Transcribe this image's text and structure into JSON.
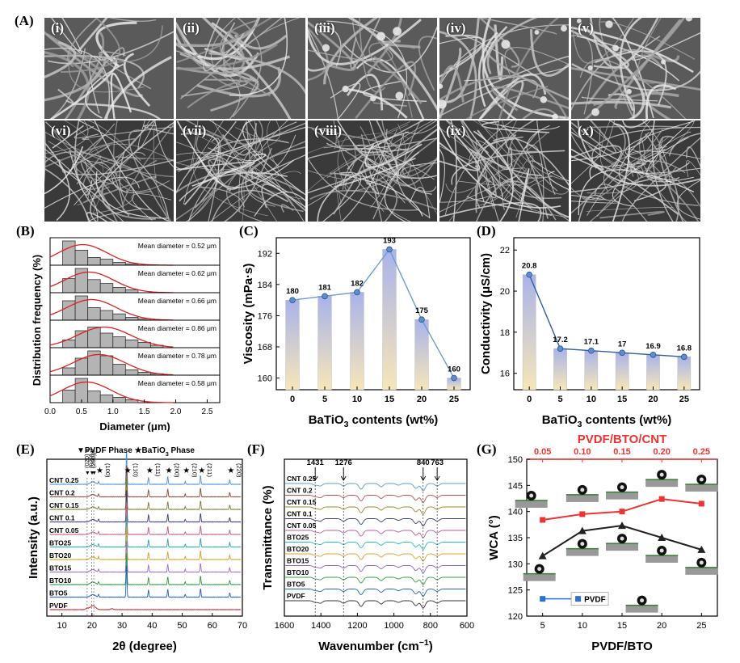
{
  "panel_labels": {
    "A": "(A)",
    "B": "(B)",
    "C": "(C)",
    "D": "(D)",
    "E": "(E)",
    "F": "(F)",
    "G": "(G)"
  },
  "sem_labels": [
    "(i)",
    "(ii)",
    "(iii)",
    "(iv)",
    "(v)",
    "(vi)",
    "(vii)",
    "(viii)",
    "(ix)",
    "(x)"
  ],
  "chart_data": [
    {
      "id": "B",
      "type": "histogram",
      "ylabel": "Distribution frequency (%)",
      "xlabel": "Diameter (μm)",
      "xlim": [
        0,
        2.7
      ],
      "xticks": [
        "0.0",
        "0.5",
        "1.0",
        "1.5",
        "2.0",
        "2.5"
      ],
      "bin_width": 0.2,
      "panels": [
        {
          "mean_label": "Mean diameter = 0.52 μm",
          "bins": [
            [
              0.2,
              1.0
            ],
            [
              0.4,
              0.62
            ],
            [
              0.6,
              0.32
            ],
            [
              0.8,
              0.25
            ],
            [
              1.0,
              0.12
            ],
            [
              1.2,
              0.05
            ]
          ],
          "mean": 0.52
        },
        {
          "mean_label": "Mean diameter = 0.62 μm",
          "bins": [
            [
              0.2,
              0.58
            ],
            [
              0.4,
              1.0
            ],
            [
              0.6,
              0.54
            ],
            [
              0.8,
              0.38
            ],
            [
              1.0,
              0.22
            ],
            [
              1.2,
              0.12
            ]
          ],
          "mean": 0.62
        },
        {
          "mean_label": "Mean diameter = 0.66 μm",
          "bins": [
            [
              0.2,
              0.8
            ],
            [
              0.4,
              1.0
            ],
            [
              0.6,
              0.52
            ],
            [
              0.8,
              0.4
            ],
            [
              1.0,
              0.26
            ],
            [
              1.2,
              0.12
            ],
            [
              1.4,
              0.06
            ]
          ],
          "mean": 0.66
        },
        {
          "mean_label": "Mean diameter = 0.86 μm",
          "bins": [
            [
              0.2,
              0.32
            ],
            [
              0.4,
              0.7
            ],
            [
              0.6,
              0.85
            ],
            [
              0.8,
              0.6
            ],
            [
              1.0,
              0.45
            ],
            [
              1.2,
              0.32
            ],
            [
              1.4,
              0.22
            ],
            [
              1.6,
              0.1
            ]
          ],
          "mean": 0.86
        },
        {
          "mean_label": "Mean diameter = 0.78 μm",
          "bins": [
            [
              0.2,
              0.3
            ],
            [
              0.4,
              0.7
            ],
            [
              0.6,
              1.0
            ],
            [
              0.8,
              0.8
            ],
            [
              1.0,
              0.45
            ],
            [
              1.2,
              0.22
            ],
            [
              1.4,
              0.12
            ],
            [
              1.6,
              0.06
            ]
          ],
          "mean": 0.78
        },
        {
          "mean_label": "Mean diameter = 0.58 μm",
          "bins": [
            [
              0.2,
              0.52
            ],
            [
              0.4,
              1.0
            ],
            [
              0.6,
              0.48
            ],
            [
              0.8,
              0.32
            ],
            [
              1.0,
              0.22
            ],
            [
              1.2,
              0.12
            ]
          ],
          "mean": 0.58
        }
      ]
    },
    {
      "id": "C",
      "type": "bar",
      "categories": [
        "0",
        "5",
        "10",
        "15",
        "20",
        "25"
      ],
      "values": [
        180,
        181,
        182,
        193,
        175,
        160
      ],
      "data_labels": [
        "180",
        "181",
        "182",
        "193",
        "175",
        "160"
      ],
      "ylabel": "Viscosity (mPa·s)",
      "xlabel": "BaTiO3 contents (wt%)",
      "ylim": [
        157,
        196
      ],
      "yticks": [
        "160",
        "168",
        "176",
        "184",
        "192"
      ],
      "bar_top_color": "#a5b1e8",
      "bar_bottom_color": "#f5e3b7",
      "line_color": "#6e9bd1"
    },
    {
      "id": "D",
      "type": "bar",
      "categories": [
        "0",
        "5",
        "10",
        "15",
        "20",
        "25"
      ],
      "values": [
        20.8,
        17.2,
        17.1,
        17,
        16.9,
        16.8
      ],
      "data_labels": [
        "20.8",
        "17.2",
        "17.1",
        "17",
        "16.9",
        "16.8"
      ],
      "ylabel": "Conductivity (μS/cm)",
      "xlabel": "BaTiO3 contents (wt%)",
      "ylim": [
        15.2,
        22.6
      ],
      "yticks": [
        "16",
        "18",
        "20",
        "22"
      ],
      "line_color": "#2f5fa0"
    },
    {
      "id": "E",
      "type": "line",
      "ylabel": "Intensity (a.u.)",
      "xlabel": "2θ (degree)",
      "xlim": [
        5,
        70
      ],
      "xticks": [
        "10",
        "20",
        "30",
        "40",
        "50",
        "60",
        "70"
      ],
      "legend_pvdf": "▼PVDF Phase",
      "legend_bto": "★BaTiO3 Phase",
      "series": [
        {
          "name": "CNT 0.25",
          "color": "#4a90d9"
        },
        {
          "name": "CNT 0.2",
          "color": "#8b4a3a"
        },
        {
          "name": "CNT 0.15",
          "color": "#7b7b2b"
        },
        {
          "name": "CNT 0.1",
          "color": "#3a3a7a"
        },
        {
          "name": "CNT 0.05",
          "color": "#c05a8a"
        },
        {
          "name": "BTO25",
          "color": "#2aa6a6"
        },
        {
          "name": "BTO20",
          "color": "#d9a020"
        },
        {
          "name": "BTO15",
          "color": "#9a6ad0"
        },
        {
          "name": "BTO10",
          "color": "#2a9a3a"
        },
        {
          "name": "BTO5",
          "color": "#2060c0"
        },
        {
          "name": "PVDF",
          "color": "#d02020"
        }
      ],
      "bto_peaks": [
        {
          "x": 22.2,
          "label": "(100)"
        },
        {
          "x": 31.5,
          "label": "(110)"
        },
        {
          "x": 38.8,
          "label": "(111)"
        },
        {
          "x": 45.2,
          "label": "(200)"
        },
        {
          "x": 51.0,
          "label": "(210)"
        },
        {
          "x": 56.1,
          "label": "(211)"
        },
        {
          "x": 65.8,
          "label": "(220)"
        }
      ],
      "pvdf_peaks": [
        {
          "x": 18.4,
          "label": "(020) α"
        },
        {
          "x": 19.9,
          "label": "(020) α"
        },
        {
          "x": 20.6,
          "label": "(200)β"
        }
      ]
    },
    {
      "id": "F",
      "type": "line",
      "ylabel": "Transmittance (%)",
      "xlabel": "Wavenumber (cm−1)",
      "xlim": [
        1600,
        600
      ],
      "xticks": [
        "1600",
        "1400",
        "1200",
        "1000",
        "800",
        "600"
      ],
      "annotations": [
        "1431",
        "1276",
        "840",
        "763"
      ],
      "series": [
        {
          "name": "CNT 0.25",
          "color": "#5b9bd5"
        },
        {
          "name": "CNT 0.2",
          "color": "#c0504d"
        },
        {
          "name": "CNT 0.15",
          "color": "#9a8a2a"
        },
        {
          "name": "CNT 0.1",
          "color": "#3a3a8a"
        },
        {
          "name": "CNT 0.05",
          "color": "#c05aa0"
        },
        {
          "name": "BTO25",
          "color": "#2abaca"
        },
        {
          "name": "BTO20",
          "color": "#e0a030"
        },
        {
          "name": "BTO15",
          "color": "#9060d0"
        },
        {
          "name": "BTO10",
          "color": "#30a040"
        },
        {
          "name": "BTO5",
          "color": "#2060d0"
        },
        {
          "name": "PVDF",
          "color": "#333333"
        }
      ]
    },
    {
      "id": "G",
      "type": "line",
      "ylabel": "WCA (°)",
      "xlabel": "PVDF/BTO",
      "top_xlabel": "PVDF/BTO/CNT",
      "xticks": [
        "5",
        "10",
        "15",
        "20",
        "25"
      ],
      "top_xticks": [
        "0.05",
        "0.10",
        "0.15",
        "0.20",
        "0.25"
      ],
      "yticks": [
        "120",
        "125",
        "130",
        "135",
        "140",
        "145",
        "150"
      ],
      "ylim": [
        120,
        150
      ],
      "legend": "PVDF",
      "series": [
        {
          "name": "PVDF/BTO",
          "x": [
            5,
            10,
            15,
            20,
            25
          ],
          "values": [
            131.5,
            136.3,
            137.3,
            135,
            132.7
          ],
          "color": "#222222"
        },
        {
          "name": "PVDF/BTO/CNT",
          "x": [
            5,
            10,
            15,
            20,
            25
          ],
          "values": [
            138.4,
            139.5,
            140.0,
            142.4,
            141.5
          ],
          "color": "#ee3333"
        },
        {
          "name": "PVDF",
          "x": [
            5,
            8
          ],
          "values": [
            123.3,
            123.3
          ],
          "color": "#2f6fd0"
        }
      ]
    }
  ]
}
